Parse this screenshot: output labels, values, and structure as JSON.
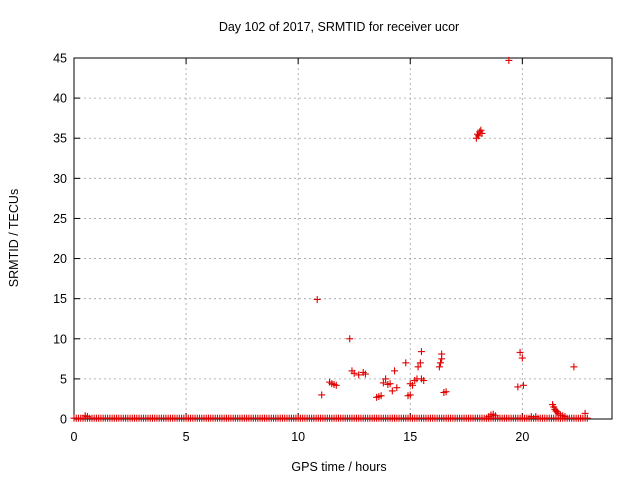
{
  "chart_data": {
    "type": "scatter",
    "title": "Day 102 of 2017, SRMTID for receiver ucor",
    "xlabel": "GPS time / hours",
    "ylabel": "SRMTID / TECUs",
    "xlim": [
      0,
      24
    ],
    "ylim": [
      0,
      45
    ],
    "xticks": [
      "0",
      "5",
      "10",
      "15",
      "20"
    ],
    "yticks": [
      "0",
      "5",
      "10",
      "15",
      "20",
      "25",
      "30",
      "35",
      "40",
      "45"
    ],
    "grid": true,
    "marker": "plus",
    "color": "#e00000",
    "series": [
      {
        "baseline": {
          "x_start": 0.0,
          "x_end": 22.9,
          "step": 0.1,
          "y": 0.1
        },
        "points": [
          {
            "x": 0.5,
            "y": 0.4
          },
          {
            "x": 0.6,
            "y": 0.3
          },
          {
            "x": 10.85,
            "y": 14.9
          },
          {
            "x": 11.05,
            "y": 3.0
          },
          {
            "x": 11.4,
            "y": 4.6
          },
          {
            "x": 11.5,
            "y": 4.4
          },
          {
            "x": 11.6,
            "y": 4.3
          },
          {
            "x": 11.7,
            "y": 4.2
          },
          {
            "x": 12.3,
            "y": 10.0
          },
          {
            "x": 12.4,
            "y": 6.0
          },
          {
            "x": 12.5,
            "y": 5.7
          },
          {
            "x": 12.7,
            "y": 5.5
          },
          {
            "x": 12.9,
            "y": 5.8
          },
          {
            "x": 13.0,
            "y": 5.6
          },
          {
            "x": 13.5,
            "y": 2.7
          },
          {
            "x": 13.6,
            "y": 2.8
          },
          {
            "x": 13.7,
            "y": 2.9
          },
          {
            "x": 13.8,
            "y": 4.5
          },
          {
            "x": 13.9,
            "y": 5.0
          },
          {
            "x": 14.0,
            "y": 4.3
          },
          {
            "x": 14.1,
            "y": 4.4
          },
          {
            "x": 14.2,
            "y": 3.5
          },
          {
            "x": 14.3,
            "y": 6.0
          },
          {
            "x": 14.4,
            "y": 3.9
          },
          {
            "x": 14.8,
            "y": 7.0
          },
          {
            "x": 14.9,
            "y": 2.9
          },
          {
            "x": 15.0,
            "y": 3.0
          },
          {
            "x": 15.0,
            "y": 4.4
          },
          {
            "x": 15.1,
            "y": 4.2
          },
          {
            "x": 15.2,
            "y": 4.8
          },
          {
            "x": 15.3,
            "y": 5.0
          },
          {
            "x": 15.35,
            "y": 6.5
          },
          {
            "x": 15.45,
            "y": 7.0
          },
          {
            "x": 15.5,
            "y": 8.4
          },
          {
            "x": 15.5,
            "y": 5.0
          },
          {
            "x": 15.6,
            "y": 4.8
          },
          {
            "x": 16.3,
            "y": 6.5
          },
          {
            "x": 16.35,
            "y": 7.0
          },
          {
            "x": 16.4,
            "y": 7.5
          },
          {
            "x": 16.4,
            "y": 8.1
          },
          {
            "x": 16.5,
            "y": 3.3
          },
          {
            "x": 16.6,
            "y": 3.4
          },
          {
            "x": 17.95,
            "y": 35.0
          },
          {
            "x": 18.0,
            "y": 35.5
          },
          {
            "x": 18.05,
            "y": 35.3
          },
          {
            "x": 18.1,
            "y": 35.8
          },
          {
            "x": 18.15,
            "y": 36.0
          },
          {
            "x": 18.2,
            "y": 35.6
          },
          {
            "x": 18.5,
            "y": 0.3
          },
          {
            "x": 18.6,
            "y": 0.5
          },
          {
            "x": 18.7,
            "y": 0.6
          },
          {
            "x": 18.8,
            "y": 0.4
          },
          {
            "x": 19.4,
            "y": 44.7
          },
          {
            "x": 19.8,
            "y": 4.0
          },
          {
            "x": 19.9,
            "y": 8.3
          },
          {
            "x": 20.0,
            "y": 7.6
          },
          {
            "x": 20.05,
            "y": 4.2
          },
          {
            "x": 20.4,
            "y": 0.3
          },
          {
            "x": 20.6,
            "y": 0.3
          },
          {
            "x": 21.35,
            "y": 1.8
          },
          {
            "x": 21.4,
            "y": 1.5
          },
          {
            "x": 21.45,
            "y": 1.2
          },
          {
            "x": 21.5,
            "y": 1.0
          },
          {
            "x": 21.55,
            "y": 0.9
          },
          {
            "x": 21.6,
            "y": 0.7
          },
          {
            "x": 21.7,
            "y": 0.5
          },
          {
            "x": 21.8,
            "y": 0.4
          },
          {
            "x": 21.9,
            "y": 0.3
          },
          {
            "x": 22.3,
            "y": 6.5
          },
          {
            "x": 22.8,
            "y": 0.7
          }
        ]
      }
    ]
  }
}
